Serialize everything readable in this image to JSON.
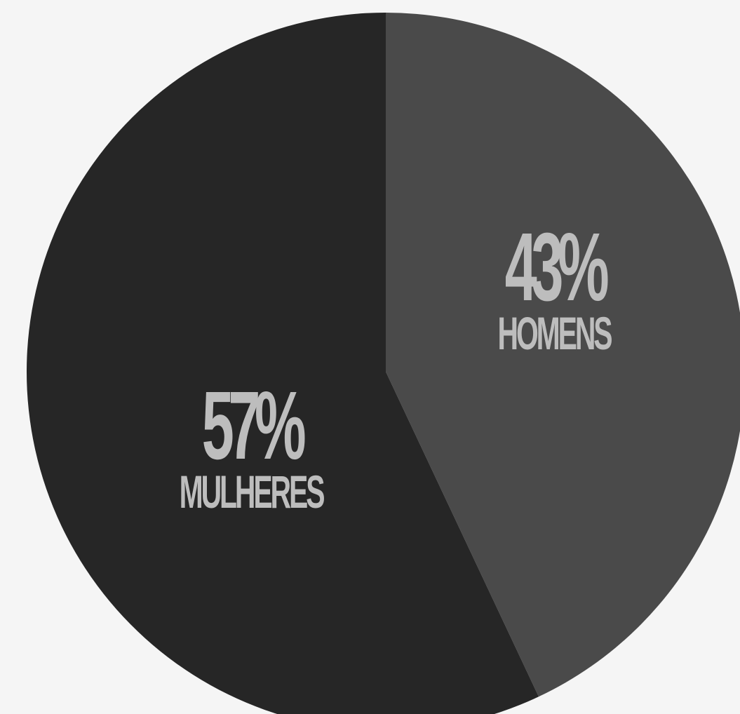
{
  "chart_data": {
    "type": "pie",
    "slices": [
      {
        "label": "HOMENS",
        "value": 43,
        "value_text": "43%",
        "color": "#4a4a4a",
        "label_color": "#bdbdbd"
      },
      {
        "label": "MULHERES",
        "value": 57,
        "value_text": "57%",
        "color": "#262626",
        "label_color": "#bdbdbd"
      }
    ],
    "start_angle_deg": 0,
    "direction": "clockwise"
  }
}
